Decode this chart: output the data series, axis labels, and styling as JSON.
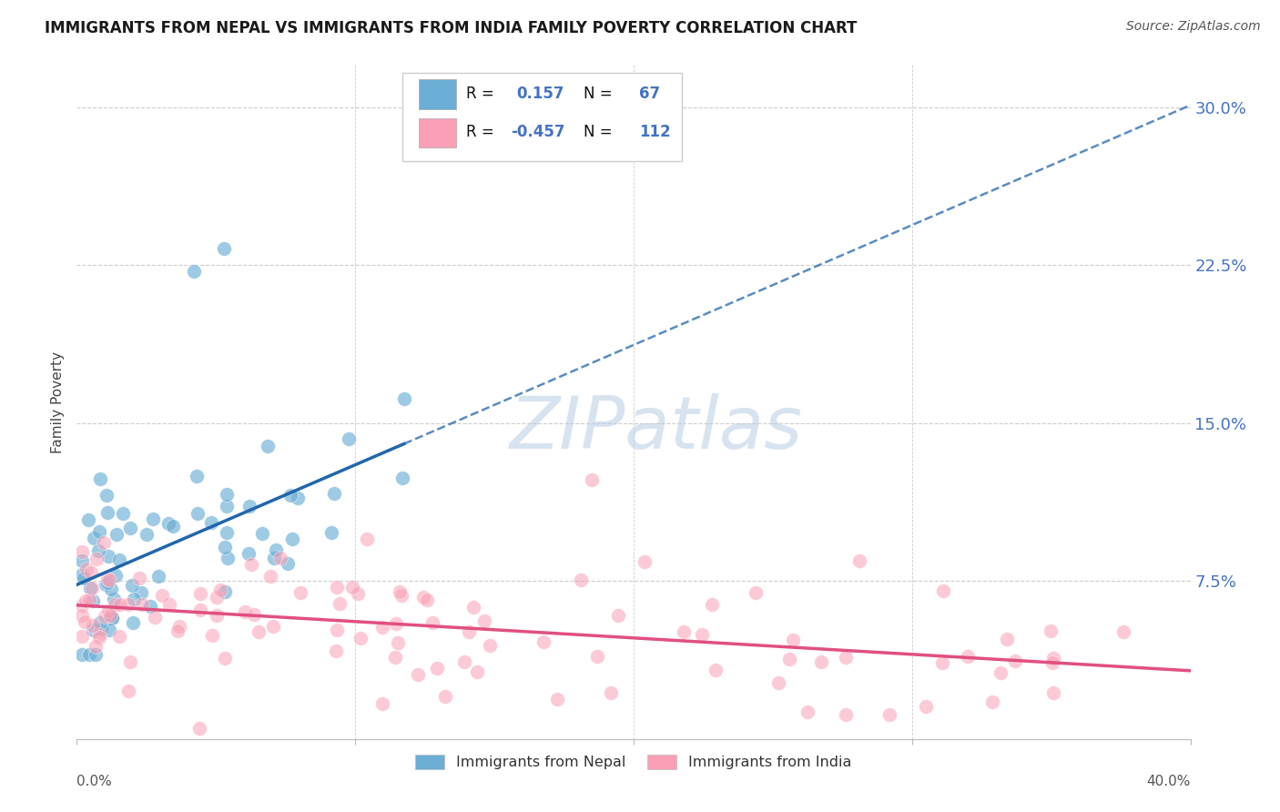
{
  "title": "IMMIGRANTS FROM NEPAL VS IMMIGRANTS FROM INDIA FAMILY POVERTY CORRELATION CHART",
  "source": "Source: ZipAtlas.com",
  "ylabel": "Family Poverty",
  "ytick_labels": [
    "7.5%",
    "15.0%",
    "22.5%",
    "30.0%"
  ],
  "ytick_values": [
    0.075,
    0.15,
    0.225,
    0.3
  ],
  "xlim": [
    0.0,
    0.4
  ],
  "ylim": [
    0.0,
    0.32
  ],
  "nepal_R": 0.157,
  "nepal_N": 67,
  "india_R": -0.457,
  "india_N": 112,
  "nepal_color": "#6baed6",
  "india_color": "#fa9fb5",
  "nepal_line_color": "#2166ac",
  "india_line_color": "#e05080",
  "watermark": "ZIPatlas",
  "grid_color": "#cccccc",
  "background_color": "#ffffff",
  "right_axis_color": "#4472c4",
  "legend_R_color": "#000000",
  "legend_N_color": "#4472c4"
}
